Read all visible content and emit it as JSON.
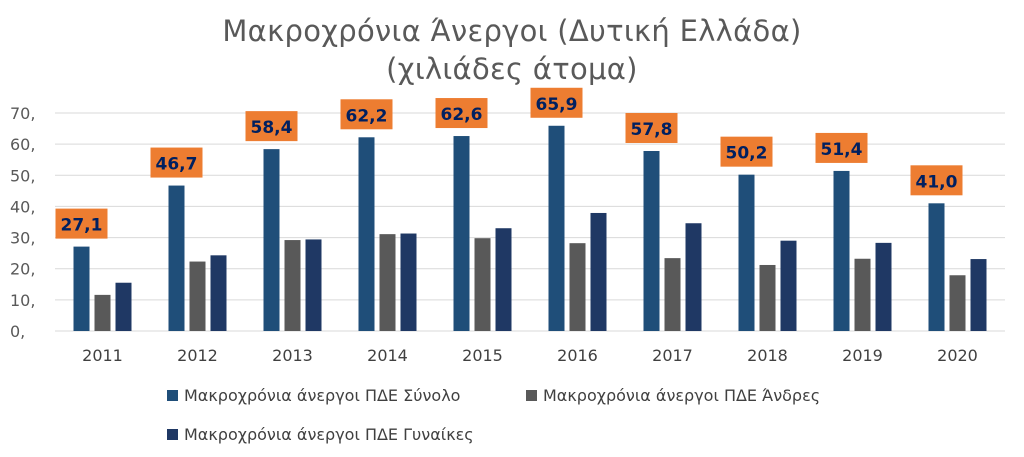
{
  "chart_data": {
    "type": "bar",
    "title_line1": "Μακροχρόνια Άνεργοι (Δυτική Ελλάδα)",
    "title_line2": "(χιλιάδες άτομα)",
    "categories": [
      "2011",
      "2012",
      "2013",
      "2014",
      "2015",
      "2016",
      "2017",
      "2018",
      "2019",
      "2020"
    ],
    "series": [
      {
        "name": "Μακροχρόνια άνεργοι ΠΔΕ Σύνολο",
        "color": "#1f4e79",
        "values": [
          27.1,
          46.7,
          58.4,
          62.2,
          62.6,
          65.9,
          57.8,
          50.2,
          51.4,
          41.0
        ]
      },
      {
        "name": "Μακροχρόνια άνεργοι ΠΔΕ Άνδρες",
        "color": "#595959",
        "values": [
          11.6,
          22.3,
          29.2,
          31.1,
          29.8,
          28.2,
          23.4,
          21.2,
          23.2,
          17.9
        ]
      },
      {
        "name": "Μακροχρόνια άνεργοι ΠΔΕ Γυναίκες",
        "color": "#1f3864",
        "values": [
          15.5,
          24.3,
          29.4,
          31.3,
          33.0,
          37.9,
          34.6,
          29.0,
          28.3,
          23.1
        ]
      }
    ],
    "data_labels": [
      "27,1",
      "46,7",
      "58,4",
      "62,2",
      "62,6",
      "65,9",
      "57,8",
      "50,2",
      "51,4",
      "41,0"
    ],
    "data_label_bg": "#ed7d31",
    "data_label_color": "#002060",
    "y_ticks": [
      "0,",
      "10,",
      "20,",
      "30,",
      "40,",
      "50,",
      "60,",
      "70,"
    ],
    "ylim": [
      0,
      70
    ],
    "grid": true,
    "legend_position": "bottom"
  }
}
